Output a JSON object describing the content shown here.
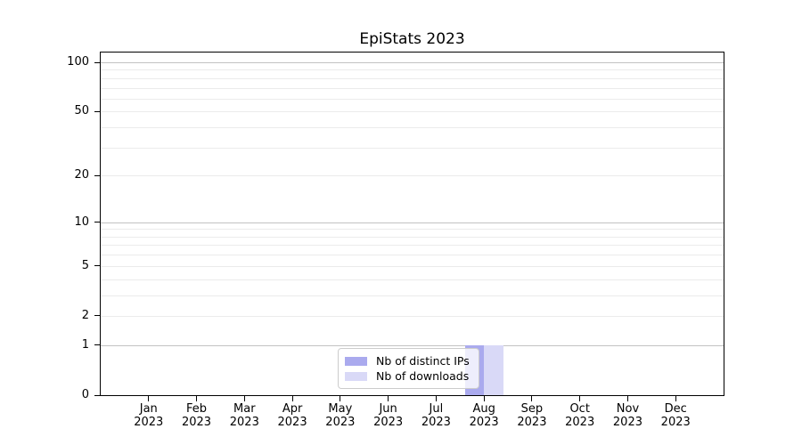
{
  "chart_data": {
    "type": "bar",
    "title": "EpiStats 2023",
    "categories": [
      "Jan 2023",
      "Feb 2023",
      "Mar 2023",
      "Apr 2023",
      "May 2023",
      "Jun 2023",
      "Jul 2023",
      "Aug 2023",
      "Sep 2023",
      "Oct 2023",
      "Nov 2023",
      "Dec 2023"
    ],
    "series": [
      {
        "name": "Nb of distinct IPs",
        "color": "#aaaaee",
        "values": [
          0,
          0,
          0,
          0,
          0,
          0,
          0,
          1,
          0,
          0,
          0,
          0
        ]
      },
      {
        "name": "Nb of downloads",
        "color": "#d9d9f7",
        "values": [
          0,
          0,
          0,
          0,
          0,
          0,
          0,
          1,
          0,
          0,
          0,
          0
        ]
      }
    ],
    "xlabel": "",
    "ylabel": "",
    "yscale": "log1p",
    "ylim": [
      0,
      115
    ],
    "yticks": [
      100,
      50,
      20,
      10,
      5,
      2,
      1,
      0
    ],
    "major_gridlines": [
      1,
      10,
      100
    ],
    "minor_gridlines": [
      2,
      3,
      4,
      5,
      6,
      7,
      8,
      9,
      20,
      30,
      40,
      50,
      60,
      70,
      80,
      90
    ],
    "grid": true,
    "legend_position": "lower center"
  },
  "colors": {
    "major_grid": "#c2c2c2",
    "minor_grid": "#ebebeb",
    "spine": "#000000",
    "text": "#000000",
    "legend_border": "#cccccc",
    "background": "#ffffff"
  }
}
